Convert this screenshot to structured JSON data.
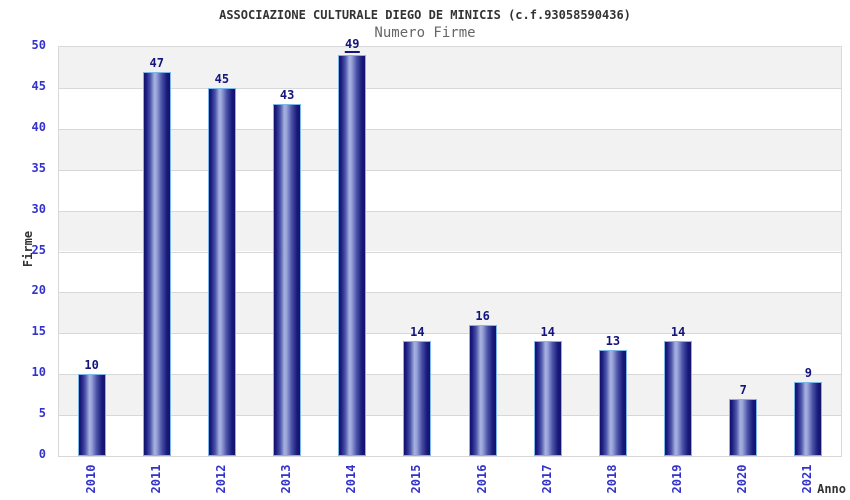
{
  "chart_data": {
    "type": "bar",
    "title": "ASSOCIAZIONE CULTURALE DIEGO DE MINICIS (c.f.93058590436)",
    "subtitle": "Numero Firme",
    "xlabel": "Anno",
    "ylabel": "Firme",
    "categories": [
      "2010",
      "2011",
      "2012",
      "2013",
      "2014",
      "2015",
      "2016",
      "2017",
      "2018",
      "2019",
      "2020",
      "2021"
    ],
    "values": [
      10,
      47,
      45,
      43,
      49,
      14,
      16,
      14,
      13,
      14,
      7,
      9
    ],
    "ylim": [
      0,
      50
    ],
    "ytick_step": 5,
    "yticks": [
      0,
      5,
      10,
      15,
      20,
      25,
      30,
      35,
      40,
      45,
      50
    ],
    "underlined_value_label": 49,
    "grid": true,
    "legend": "none",
    "colors": {
      "tick_label": "#3333cc",
      "value_label": "#14147d",
      "title": "#333333",
      "subtitle": "#666666",
      "axis_label": "#333333",
      "grid_line": "#d8d8d8",
      "band_gray": "#f2f2f2",
      "band_white": "#ffffff",
      "bar_edge_highlight": "#7db7ea",
      "bar_dark": "#12126e",
      "bar_light": "#a8b2e0"
    }
  }
}
